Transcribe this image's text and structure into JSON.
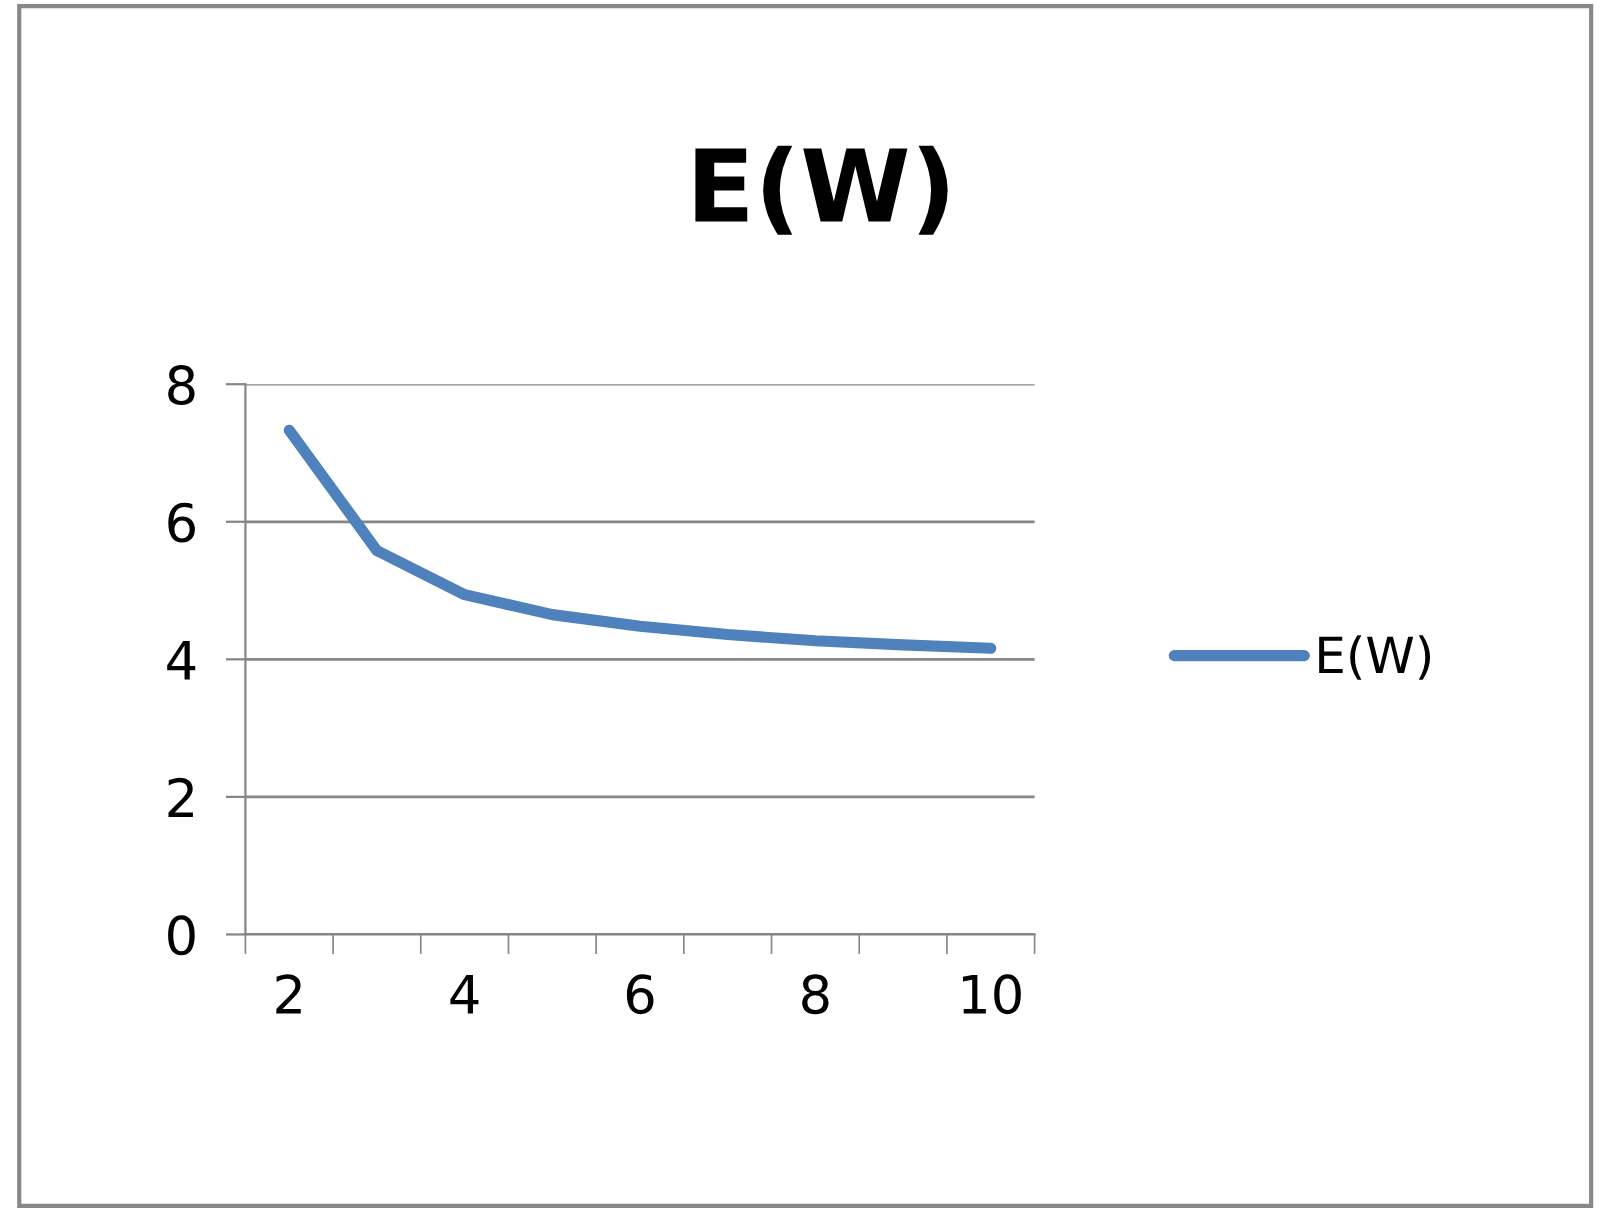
{
  "chart_data": {
    "type": "line",
    "title": "E(W)",
    "categories": [
      "2",
      null,
      "4",
      null,
      "6",
      null,
      "8",
      null,
      "10"
    ],
    "series": [
      {
        "name": "E(W)",
        "color": "#4f81bd",
        "values": [
          7.33,
          5.58,
          4.94,
          4.65,
          4.48,
          4.36,
          4.27,
          4.21,
          4.16
        ]
      }
    ],
    "ylim": [
      0,
      8
    ],
    "yticks": [
      0,
      2,
      4,
      6,
      8
    ],
    "grid": "y",
    "legend": "right",
    "marker": "none",
    "line_style": "solid"
  }
}
